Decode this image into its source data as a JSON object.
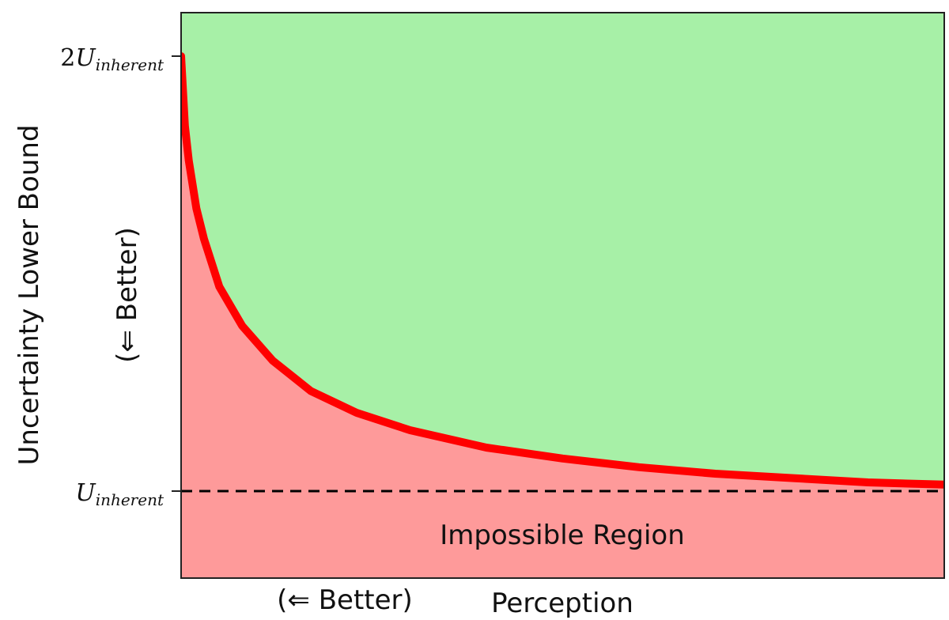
{
  "chart_data": {
    "type": "area",
    "title": "",
    "xlabel": "Perception",
    "xlabel_note": "(⇐ Better)",
    "ylabel": "Uncertainty Lower Bound",
    "ylabel_note": "(⇐ Better)",
    "y_ticks": [
      {
        "value": 2,
        "prefix": "2",
        "main": "U",
        "sub": "inherent"
      },
      {
        "value": 1,
        "prefix": "",
        "main": "U",
        "sub": "inherent"
      }
    ],
    "ylim": [
      0.8,
      2.1
    ],
    "xlim": [
      0,
      1
    ],
    "x_ticks_shown": false,
    "grid": false,
    "legend": "none",
    "bound_curve": {
      "x": [
        0.0,
        0.005,
        0.01,
        0.02,
        0.03,
        0.05,
        0.08,
        0.12,
        0.17,
        0.23,
        0.3,
        0.4,
        0.5,
        0.6,
        0.7,
        0.8,
        0.9,
        1.0
      ],
      "y": [
        2.0,
        1.84,
        1.76,
        1.65,
        1.58,
        1.47,
        1.38,
        1.3,
        1.23,
        1.18,
        1.14,
        1.1,
        1.075,
        1.055,
        1.04,
        1.03,
        1.02,
        1.015
      ],
      "color": "#ff0000"
    },
    "reference_line": {
      "y": 1,
      "style": "dashed",
      "color": "#000000"
    },
    "regions": [
      {
        "name": "feasible",
        "position": "above curve",
        "color": "#a7f0a7"
      },
      {
        "name": "impossible",
        "position": "below curve",
        "color": "#fe9a9a",
        "label": "Impossible Region"
      }
    ]
  }
}
